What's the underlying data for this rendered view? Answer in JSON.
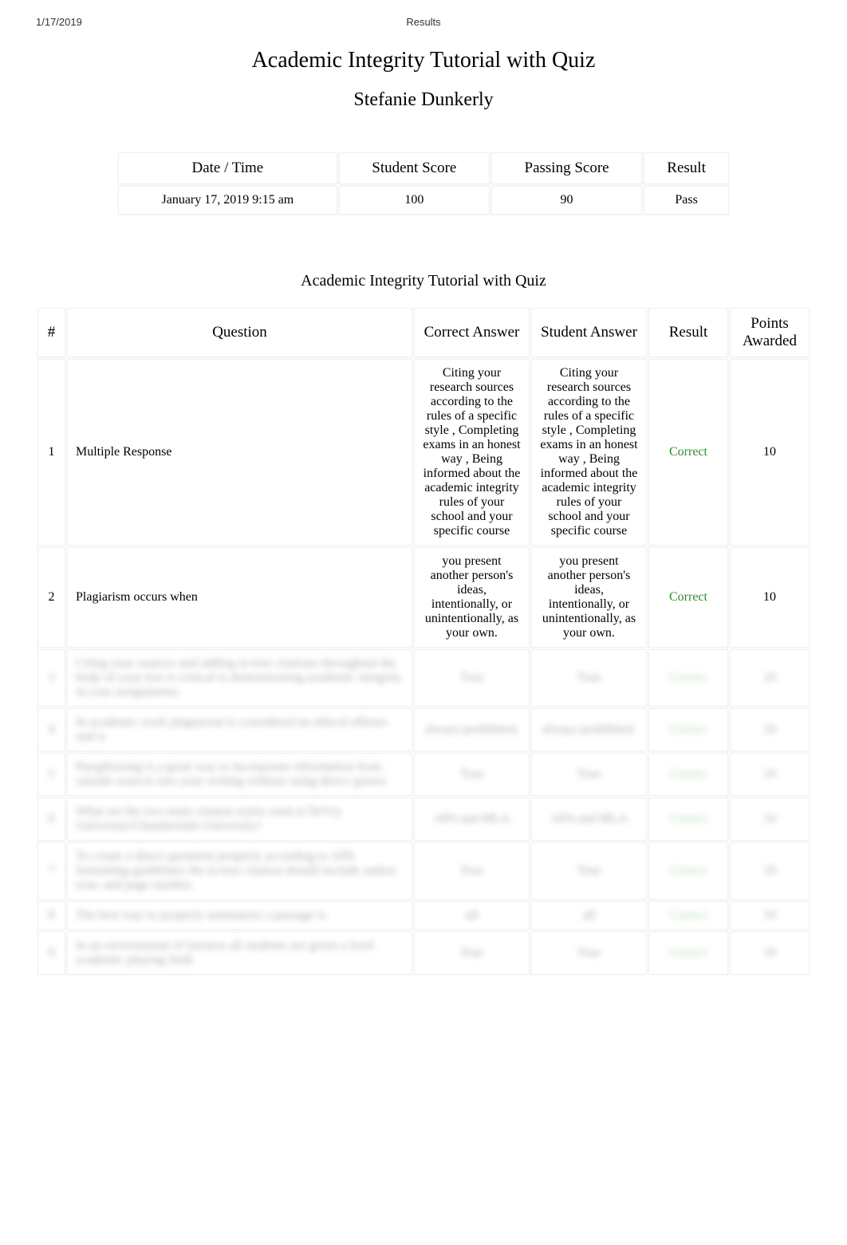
{
  "header": {
    "date_printed": "1/17/2019",
    "page_label": "Results"
  },
  "title": "Academic Integrity Tutorial with Quiz",
  "student_name": "Stefanie Dunkerly",
  "summary": {
    "headers": {
      "datetime": "Date / Time",
      "student_score": "Student Score",
      "passing_score": "Passing Score",
      "result": "Result"
    },
    "values": {
      "datetime": "January 17, 2019 9:15 am",
      "student_score": "100",
      "passing_score": "90",
      "result": "Pass"
    }
  },
  "section_heading": "Academic Integrity Tutorial with Quiz",
  "results_headers": {
    "num": "#",
    "question": "Question",
    "correct": "Correct Answer",
    "student": "Student Answer",
    "result": "Result",
    "points": "Points Awarded"
  },
  "rows": [
    {
      "num": "1",
      "question": "Multiple Response",
      "correct": "Citing your research sources according to the rules of a specific style , Completing exams in an honest way , Being informed about the academic integrity rules of your school and your specific course",
      "student": "Citing your research sources according to the rules of a specific style , Completing exams in an honest way , Being informed about the academic integrity rules of your school and your specific course",
      "result": "Correct",
      "points": "10",
      "hidden": false
    },
    {
      "num": "2",
      "question": "Plagiarism occurs when",
      "correct": "you present another person's ideas, intentionally, or unintentionally, as your own.",
      "student": "you present another person's ideas, intentionally, or unintentionally, as your own.",
      "result": "Correct",
      "points": "10",
      "hidden": false
    },
    {
      "num": "3",
      "question": "Citing your sources and adding in-text citations throughout the body of your text is critical to demonstrating academic integrity in your assignments.",
      "correct": "True",
      "student": "True",
      "result": "Correct",
      "points": "10",
      "hidden": true
    },
    {
      "num": "4",
      "question": "In academic work plagiarism is considered an ethical offense and is",
      "correct": "always prohibited.",
      "student": "always prohibited.",
      "result": "Correct",
      "points": "10",
      "hidden": true
    },
    {
      "num": "5",
      "question": "Paraphrasing is a great way to incorporate information from outside sources into your writing without using direct quotes.",
      "correct": "True",
      "student": "True",
      "result": "Correct",
      "points": "10",
      "hidden": true
    },
    {
      "num": "6",
      "question": "What are the two main citation styles used at DeVry University/Chamberlain University?",
      "correct": "APA and MLA",
      "student": "APA and MLA",
      "result": "Correct",
      "points": "10",
      "hidden": true
    },
    {
      "num": "7",
      "question": "To create a direct quotation properly according to APA formatting guidelines the in-text citation should include author, year, and page number.",
      "correct": "True",
      "student": "True",
      "result": "Correct",
      "points": "10",
      "hidden": true
    },
    {
      "num": "8",
      "question": "The best way to properly summarize a passage is",
      "correct": "all",
      "student": "all",
      "result": "Correct",
      "points": "10",
      "hidden": true
    },
    {
      "num": "9",
      "question": "In an environment of fairness all students are given a level academic playing field.",
      "correct": "True",
      "student": "True",
      "result": "Correct",
      "points": "10",
      "hidden": true
    }
  ],
  "colors": {
    "correct_green": "#2e8b2e",
    "border_light": "#f0f0f0",
    "text": "#000000",
    "bg": "#ffffff"
  }
}
